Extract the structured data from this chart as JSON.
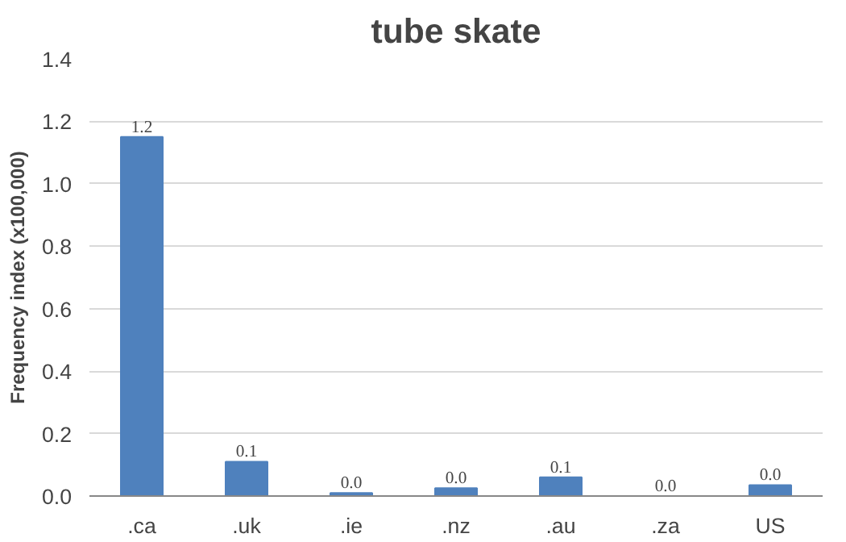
{
  "chart_data": {
    "type": "bar",
    "title": "tube skate",
    "ylabel": "Frequency index (x100,000)",
    "categories": [
      ".ca",
      ".uk",
      ".ie",
      ".nz",
      ".au",
      ".za",
      "US"
    ],
    "values": [
      1.15,
      0.11,
      0.01,
      0.025,
      0.06,
      0.0,
      0.035
    ],
    "value_labels": [
      "1.2",
      "0.1",
      "0.0",
      "0.0",
      "0.1",
      "0.0",
      "0.0"
    ],
    "color": "#4f81bd",
    "ylim": [
      0,
      1.4
    ],
    "yticks": [
      {
        "value": 0,
        "label": "0.0"
      },
      {
        "value": 0.2,
        "label": "0.2"
      },
      {
        "value": 0.4,
        "label": "0.4"
      },
      {
        "value": 0.6,
        "label": "0.6"
      },
      {
        "value": 0.8,
        "label": "0.8"
      },
      {
        "value": 1.0,
        "label": "1.0"
      },
      {
        "value": 1.2,
        "label": "1.2"
      },
      {
        "value": 1.4,
        "label": "1.4"
      }
    ],
    "grid": "y"
  }
}
